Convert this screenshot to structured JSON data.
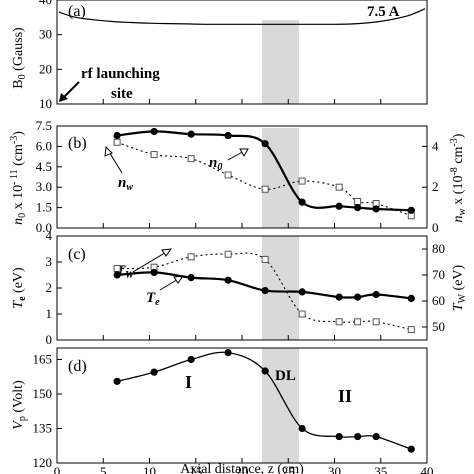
{
  "chart_data": [
    {
      "panel": "(a)",
      "type": "line",
      "ylabel": "B0 (Gauss)",
      "ylim": [
        10,
        40
      ],
      "yticks": [
        "10",
        "20",
        "30",
        "40"
      ],
      "xlim": [
        0,
        40
      ],
      "annotation_field": "7.5 A",
      "annotation_launch_line1": "rf launching",
      "annotation_launch_line2": "site",
      "series": [
        {
          "x": [
            0.2,
            2,
            4,
            6,
            8,
            10,
            12,
            14,
            16,
            18,
            20,
            22,
            24,
            26,
            28,
            30,
            32,
            34,
            36,
            38,
            39.8
          ],
          "y": [
            36.5,
            35,
            34.3,
            33.8,
            33.5,
            33.3,
            33.2,
            33.1,
            33.0,
            33.0,
            33.0,
            33.0,
            33.0,
            33.0,
            33.0,
            33.0,
            33.1,
            33.5,
            34.3,
            35.5,
            37.5
          ]
        }
      ]
    },
    {
      "panel": "(b)",
      "type": "line",
      "ylabel_left": "n0 x 10^-11 (cm^-3)",
      "ylabel_right": "nw x (10^-8 cm^-3)",
      "ylim_left": [
        0,
        7.5
      ],
      "ylim_right": [
        0,
        5
      ],
      "yticks_left": [
        "0.0",
        "1.5",
        "3.0",
        "4.5",
        "6.0",
        "7.5"
      ],
      "yticks_right": [
        "0",
        "2",
        "4"
      ],
      "label_n0": "n0",
      "label_nw": "nw",
      "series": [
        {
          "name": "n0",
          "x": [
            6.5,
            10.5,
            14.5,
            18.5,
            22.5,
            26.5,
            30.5,
            32.5,
            34.5,
            38.3
          ],
          "y": [
            6.8,
            7.1,
            6.9,
            6.8,
            6.2,
            1.9,
            1.6,
            1.5,
            1.4,
            1.3
          ]
        },
        {
          "name": "nw",
          "x": [
            6.5,
            10.5,
            14.5,
            18.5,
            22.5,
            26.5,
            30.5,
            32.5,
            34.5,
            38.3
          ],
          "y": [
            4.2,
            3.6,
            3.4,
            2.6,
            1.9,
            2.3,
            2.0,
            1.3,
            1.2,
            0.6
          ]
        }
      ]
    },
    {
      "panel": "(c)",
      "type": "line",
      "ylabel_left": "Te (eV)",
      "ylabel_right": "Tw (eV)",
      "ylim_left": [
        0,
        4
      ],
      "ylim_right": [
        45,
        85
      ],
      "yticks_left": [
        "0",
        "1",
        "2",
        "3",
        "4"
      ],
      "yticks_right": [
        "50",
        "60",
        "70",
        "80"
      ],
      "label_Tw": "Tw",
      "label_Te": "Te",
      "series": [
        {
          "name": "Te",
          "x": [
            6.5,
            10.5,
            14.5,
            18.5,
            22.5,
            26.5,
            30.5,
            32.5,
            34.5,
            38.3
          ],
          "y": [
            2.5,
            2.6,
            2.4,
            2.3,
            1.9,
            1.85,
            1.65,
            1.65,
            1.75,
            1.6
          ]
        },
        {
          "name": "Tw",
          "x": [
            6.5,
            10.5,
            14.5,
            18.5,
            22.5,
            26.5,
            30.5,
            32.5,
            34.5,
            38.3
          ],
          "y": [
            72.5,
            73,
            77,
            78,
            76,
            55,
            52,
            52,
            52,
            49
          ]
        }
      ]
    },
    {
      "panel": "(d)",
      "type": "line",
      "ylabel": "Vp (Volt)",
      "ylim": [
        120,
        170
      ],
      "yticks": [
        "120",
        "135",
        "150",
        "165"
      ],
      "xlabel": "Axial distance, z (cm)",
      "xticks": [
        "0",
        "5",
        "10",
        "15",
        "20",
        "25",
        "30",
        "35",
        "40"
      ],
      "region_I": "I",
      "region_DL": "DL",
      "region_II": "II",
      "series": [
        {
          "name": "Vp",
          "x": [
            6.5,
            10.5,
            14.5,
            18.5,
            22.5,
            26.5,
            30.5,
            32.5,
            34.5,
            38.3
          ],
          "y": [
            155.5,
            159.5,
            165,
            168,
            160,
            135,
            131.5,
            131.5,
            131.5,
            126
          ]
        }
      ]
    }
  ]
}
